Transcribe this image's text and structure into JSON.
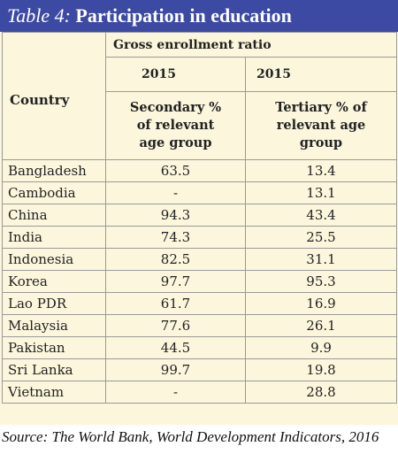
{
  "title": {
    "label": "Table 4:",
    "text": "Participation in education"
  },
  "header": {
    "country": "Country",
    "group": "Gross enrollment ratio",
    "year_secondary": "2015",
    "year_tertiary": "2015",
    "secondary": "Secondary % of relevant age group",
    "tertiary": "Tertiary % of relevant age group"
  },
  "rows": [
    {
      "country": "Bangladesh",
      "secondary": "63.5",
      "tertiary": "13.4"
    },
    {
      "country": "Cambodia",
      "secondary": "-",
      "tertiary": "13.1"
    },
    {
      "country": "China",
      "secondary": "94.3",
      "tertiary": "43.4"
    },
    {
      "country": "India",
      "secondary": "74.3",
      "tertiary": "25.5"
    },
    {
      "country": "Indonesia",
      "secondary": "82.5",
      "tertiary": "31.1"
    },
    {
      "country": "Korea",
      "secondary": "97.7",
      "tertiary": "95.3"
    },
    {
      "country": "Lao PDR",
      "secondary": "61.7",
      "tertiary": "16.9"
    },
    {
      "country": "Malaysia",
      "secondary": "77.6",
      "tertiary": "26.1"
    },
    {
      "country": "Pakistan",
      "secondary": "44.5",
      "tertiary": "9.9"
    },
    {
      "country": "Sri Lanka",
      "secondary": "99.7",
      "tertiary": "19.8"
    },
    {
      "country": "Vietnam",
      "secondary": "-",
      "tertiary": "28.8"
    }
  ],
  "source": "Source: The World Bank, World Development Indicators, 2016",
  "colors": {
    "title_bg": "#3d4aa3",
    "table_bg": "#fbf6dc",
    "border": "#9a9a9a"
  }
}
